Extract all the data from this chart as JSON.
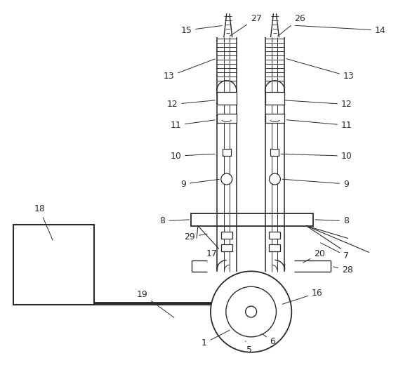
{
  "bg_color": "#ffffff",
  "line_color": "#2a2a2a",
  "fig_width": 5.74,
  "fig_height": 5.27,
  "dpi": 100
}
